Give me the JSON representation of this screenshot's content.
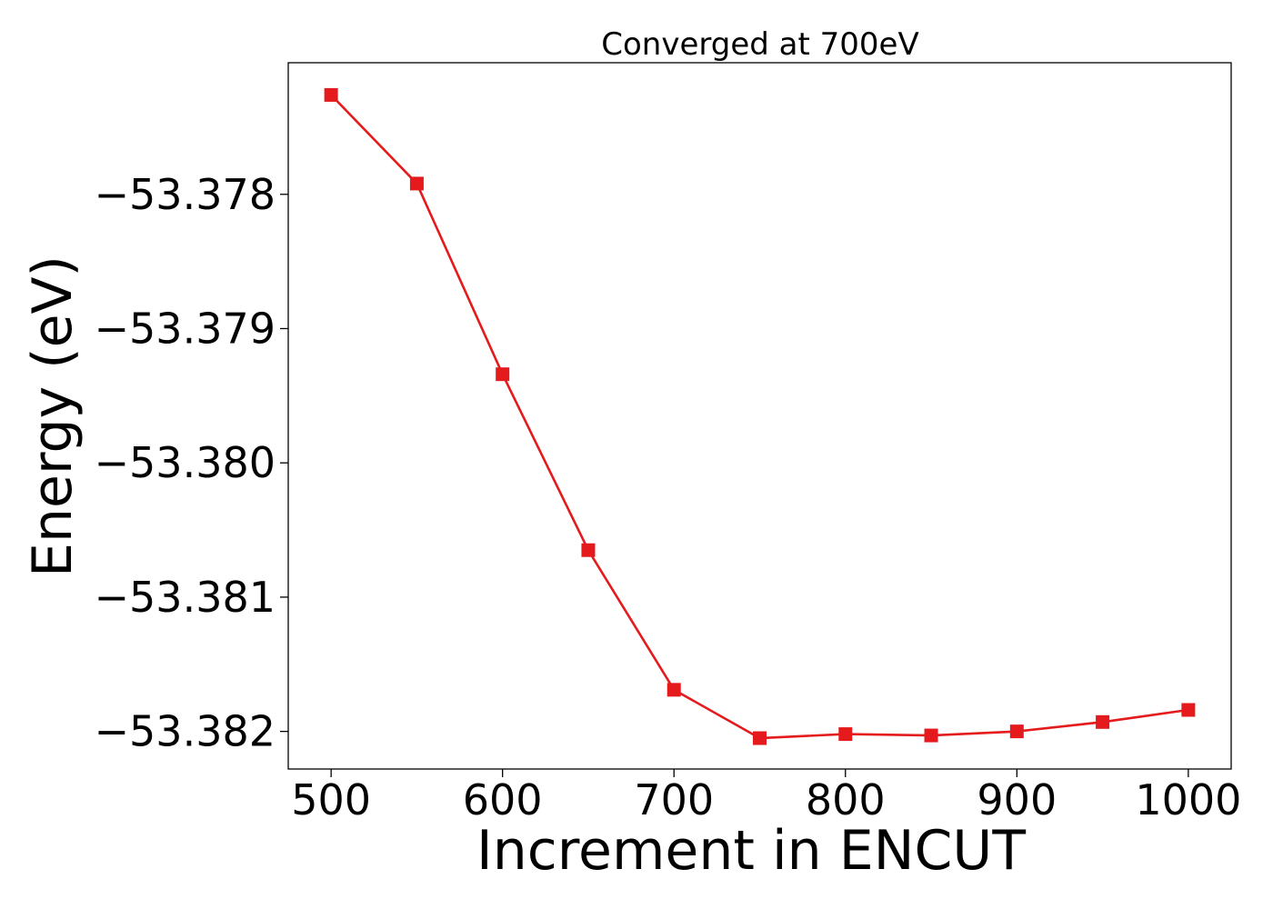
{
  "chart_data": {
    "type": "line",
    "title": "Converged at 700eV",
    "xlabel": "Increment in ENCUT",
    "ylabel": "Energy (eV)",
    "x": [
      500,
      550,
      600,
      650,
      700,
      750,
      800,
      850,
      900,
      950,
      1000
    ],
    "series": [
      {
        "values": [
          -53.37726,
          -53.37792,
          -53.37934,
          -53.38065,
          -53.38169,
          -53.38205,
          -53.38202,
          -53.38203,
          -53.382,
          -53.38193,
          -53.38184
        ],
        "color": "#e41a1c",
        "marker": "square"
      }
    ],
    "xlim": [
      475,
      1025
    ],
    "ylim": [
      -53.38228,
      -53.37702
    ],
    "xticks": [
      500,
      600,
      700,
      800,
      900,
      1000
    ],
    "xtick_labels": [
      "500",
      "600",
      "700",
      "800",
      "900",
      "1000"
    ],
    "yticks": [
      -53.378,
      -53.379,
      -53.38,
      -53.381,
      -53.382
    ],
    "ytick_labels": [
      "−53.378",
      "−53.379",
      "−53.380",
      "−53.381",
      "−53.382"
    ],
    "grid": false,
    "legend": "none"
  }
}
